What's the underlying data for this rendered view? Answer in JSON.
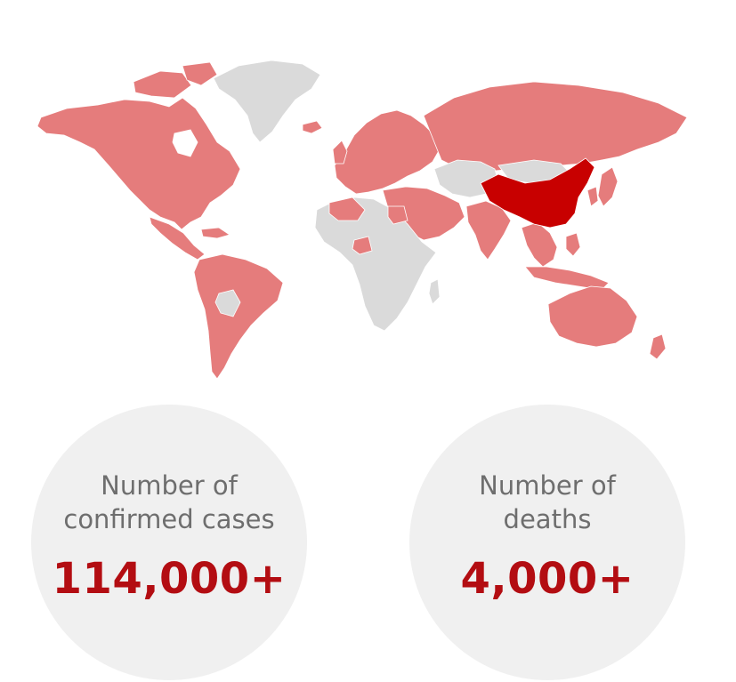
{
  "colors": {
    "affected": "#e57c7c",
    "epicenter": "#c80000",
    "unaffected": "#dadada",
    "circle_bg": "#f0f0f0",
    "label_text": "#6e6e6e",
    "value_text": "#b30d12"
  },
  "map": {
    "regions": [
      {
        "name": "greenland",
        "status": "unaffected"
      },
      {
        "name": "north-america",
        "status": "affected"
      },
      {
        "name": "central-america",
        "status": "affected"
      },
      {
        "name": "south-america",
        "status": "affected"
      },
      {
        "name": "europe",
        "status": "affected"
      },
      {
        "name": "russia",
        "status": "affected"
      },
      {
        "name": "africa",
        "status": "unaffected"
      },
      {
        "name": "middle-east",
        "status": "affected"
      },
      {
        "name": "india",
        "status": "affected"
      },
      {
        "name": "central-asia",
        "status": "unaffected"
      },
      {
        "name": "china",
        "status": "epicenter"
      },
      {
        "name": "southeast-asia",
        "status": "affected"
      },
      {
        "name": "japan",
        "status": "affected"
      },
      {
        "name": "australia",
        "status": "affected"
      },
      {
        "name": "new-zealand",
        "status": "affected"
      }
    ]
  },
  "stats": {
    "cases": {
      "label_line1": "Number of",
      "label_line2": "confirmed cases",
      "value": "114,000+"
    },
    "deaths": {
      "label_line1": "Number of",
      "label_line2": "deaths",
      "value": "4,000+"
    }
  }
}
